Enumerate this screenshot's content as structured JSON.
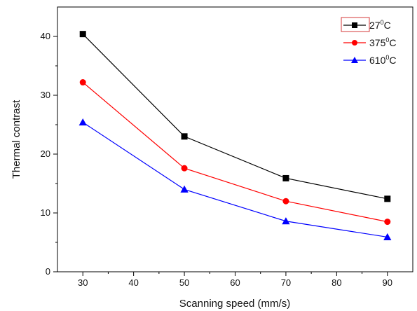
{
  "chart_data": {
    "type": "line",
    "title": "",
    "xlabel": "Scanning speed (mm/s)",
    "ylabel": "Thermal contrast",
    "xlim": [
      25,
      95
    ],
    "ylim": [
      0,
      45
    ],
    "xticks": [
      30,
      40,
      50,
      60,
      70,
      80,
      90
    ],
    "yticks": [
      0,
      10,
      20,
      30,
      40
    ],
    "grid": false,
    "legend_position": "top-right",
    "x": [
      30,
      50,
      70,
      90
    ],
    "series": [
      {
        "name": "27",
        "unit_sup": "0",
        "unit": "C",
        "color": "#000000",
        "marker": "square",
        "values": [
          40.4,
          23.0,
          15.9,
          12.4
        ]
      },
      {
        "name": "375",
        "unit_sup": "0",
        "unit": "C",
        "color": "#ff0000",
        "marker": "circle",
        "values": [
          32.2,
          17.6,
          12.0,
          8.5
        ]
      },
      {
        "name": "610",
        "unit_sup": "0",
        "unit": "C",
        "color": "#0000ff",
        "marker": "triangle",
        "values": [
          25.4,
          14.0,
          8.6,
          5.9
        ]
      }
    ]
  }
}
